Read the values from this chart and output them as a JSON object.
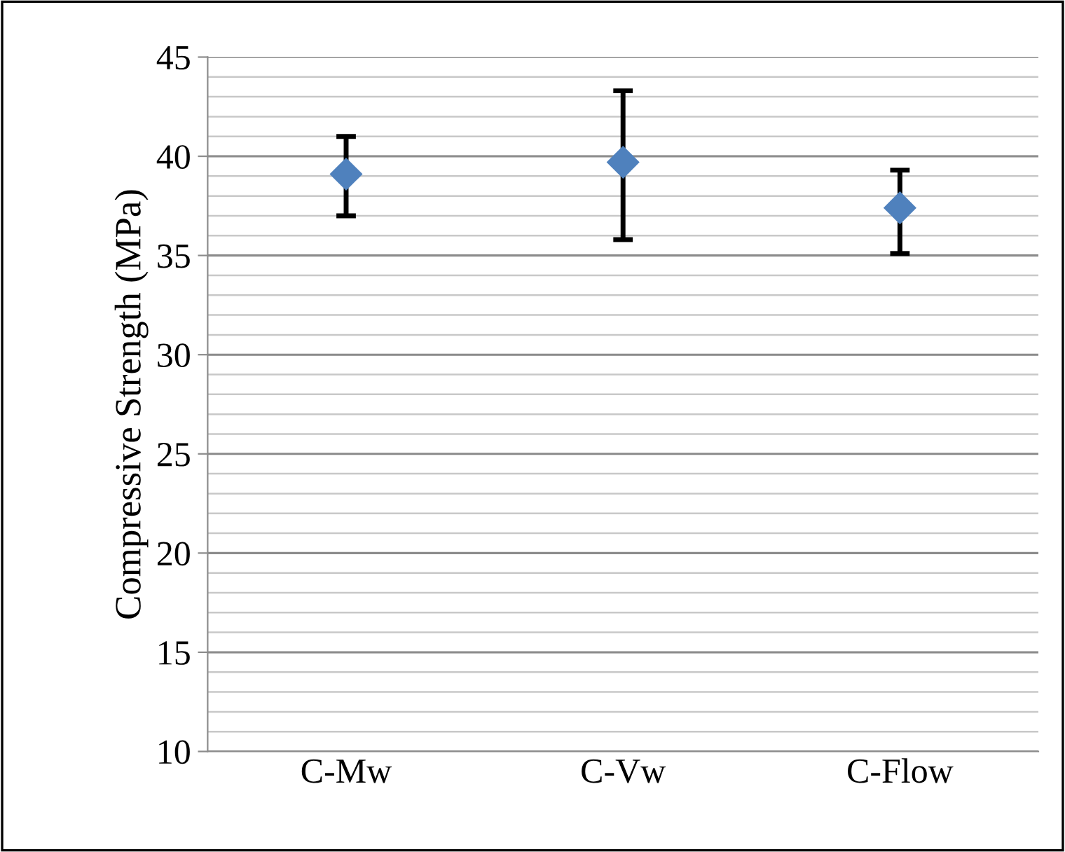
{
  "chart_data": {
    "type": "scatter",
    "ylabel": "Compressive Strength (MPa)",
    "categories": [
      "C-Mw",
      "C-Vw",
      "C-Flow"
    ],
    "series": [
      {
        "color": "#4f81bd",
        "values": [
          39.1,
          39.7,
          37.4
        ],
        "errors": [
          [
            37.0,
            41.0
          ],
          [
            35.8,
            43.3
          ],
          [
            35.1,
            39.3
          ]
        ]
      }
    ],
    "ylim": [
      10,
      45
    ],
    "yticks": [
      10,
      15,
      20,
      25,
      30,
      35,
      40,
      45
    ],
    "grid": "y",
    "marker": "diamond",
    "legend": false
  }
}
